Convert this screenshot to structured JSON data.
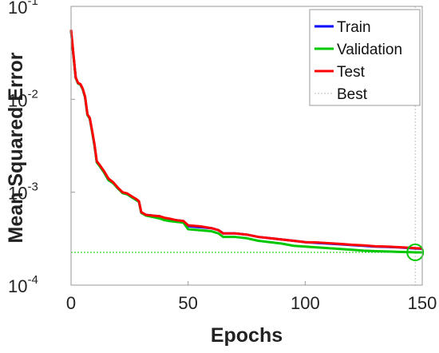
{
  "chart_data": {
    "type": "line",
    "xlabel": "Epochs",
    "ylabel": "Mean Squared Error",
    "xlim": [
      0,
      150
    ],
    "ylim": [
      0.0001,
      0.1
    ],
    "yscale": "log",
    "xticks": [
      0,
      50,
      100,
      150
    ],
    "xtick_labels": [
      "0",
      "50",
      "100",
      "150"
    ],
    "yticks": [
      0.0001,
      0.001,
      0.01,
      0.1
    ],
    "ytick_labels": [
      {
        "base": "10",
        "exp": "-4"
      },
      {
        "base": "10",
        "exp": "-3"
      },
      {
        "base": "10",
        "exp": "-2"
      },
      {
        "base": "10",
        "exp": "-1"
      }
    ],
    "grid": false,
    "legend_position": "top-right",
    "series": [
      {
        "name": "Train",
        "color": "#0000ff",
        "x": [
          0,
          1,
          2,
          3,
          4,
          5,
          6,
          7,
          8,
          9,
          10,
          11,
          12,
          14,
          16,
          18,
          20,
          22,
          24,
          26,
          28,
          29,
          30,
          32,
          35,
          38,
          40,
          42,
          45,
          48,
          50,
          55,
          60,
          63,
          65,
          70,
          75,
          80,
          85,
          90,
          95,
          100,
          105,
          110,
          115,
          120,
          125,
          130,
          135,
          140,
          145,
          147,
          150
        ],
        "y": [
          0.055,
          0.03,
          0.017,
          0.0148,
          0.0144,
          0.0128,
          0.0105,
          0.0068,
          0.0062,
          0.0045,
          0.0032,
          0.0021,
          0.00195,
          0.00165,
          0.00135,
          0.00125,
          0.0011,
          0.00098,
          0.00095,
          0.00088,
          0.00082,
          0.00079,
          0.0006,
          0.00057,
          0.00056,
          0.00055,
          0.00052,
          0.00051,
          0.0005,
          0.00049,
          0.00043,
          0.00042,
          0.00041,
          0.00039,
          0.00036,
          0.00036,
          0.00035,
          0.00033,
          0.00032,
          0.00031,
          0.0003,
          0.00029,
          0.000285,
          0.00028,
          0.000275,
          0.00027,
          0.000265,
          0.00026,
          0.000258,
          0.000255,
          0.00025,
          0.000248,
          0.000246
        ]
      },
      {
        "name": "Validation",
        "color": "#00c800",
        "x": [
          0,
          1,
          2,
          3,
          4,
          5,
          6,
          7,
          8,
          9,
          10,
          11,
          12,
          14,
          16,
          18,
          20,
          22,
          24,
          26,
          28,
          29,
          30,
          32,
          35,
          38,
          40,
          42,
          45,
          48,
          50,
          55,
          60,
          63,
          65,
          70,
          75,
          80,
          85,
          90,
          95,
          100,
          105,
          110,
          115,
          120,
          125,
          130,
          135,
          140,
          145,
          147,
          150
        ],
        "y": [
          0.055,
          0.03,
          0.017,
          0.0148,
          0.0144,
          0.0128,
          0.0105,
          0.0068,
          0.0062,
          0.0045,
          0.0032,
          0.0021,
          0.00195,
          0.00165,
          0.00135,
          0.00125,
          0.0011,
          0.00098,
          0.00095,
          0.00088,
          0.00082,
          0.00079,
          0.0006,
          0.00056,
          0.00054,
          0.00052,
          0.0005,
          0.00049,
          0.00048,
          0.00047,
          0.0004,
          0.00039,
          0.00038,
          0.00036,
          0.00033,
          0.00033,
          0.00032,
          0.0003,
          0.00029,
          0.00028,
          0.000265,
          0.00026,
          0.000255,
          0.00025,
          0.000245,
          0.00024,
          0.000235,
          0.000232,
          0.00023,
          0.000228,
          0.000226,
          0.000225,
          0.000225
        ]
      },
      {
        "name": "Test",
        "color": "#ff0000",
        "x": [
          0,
          1,
          2,
          3,
          4,
          5,
          6,
          7,
          8,
          9,
          10,
          11,
          12,
          14,
          16,
          18,
          20,
          22,
          24,
          26,
          28,
          29,
          30,
          32,
          35,
          38,
          40,
          42,
          45,
          48,
          50,
          55,
          60,
          63,
          65,
          70,
          75,
          80,
          85,
          90,
          95,
          100,
          105,
          110,
          115,
          120,
          125,
          130,
          135,
          140,
          145,
          147,
          150
        ],
        "y": [
          0.056,
          0.031,
          0.0172,
          0.015,
          0.0146,
          0.013,
          0.0107,
          0.0069,
          0.0063,
          0.0046,
          0.0033,
          0.00215,
          0.002,
          0.0017,
          0.0014,
          0.00128,
          0.00112,
          0.001,
          0.00097,
          0.0009,
          0.00084,
          0.0008,
          0.00061,
          0.00057,
          0.00056,
          0.00055,
          0.00053,
          0.00052,
          0.0005,
          0.00049,
          0.00044,
          0.00043,
          0.00041,
          0.00039,
          0.00036,
          0.00036,
          0.00035,
          0.00033,
          0.00032,
          0.00031,
          0.0003,
          0.00029,
          0.000288,
          0.000283,
          0.000278,
          0.000272,
          0.000268,
          0.000262,
          0.00026,
          0.000256,
          0.000252,
          0.00025,
          0.000248
        ]
      }
    ],
    "best": {
      "name": "Best",
      "epoch": 147,
      "value": 0.000225,
      "color": "#00c800",
      "line_color": "#bbbbbb"
    }
  }
}
